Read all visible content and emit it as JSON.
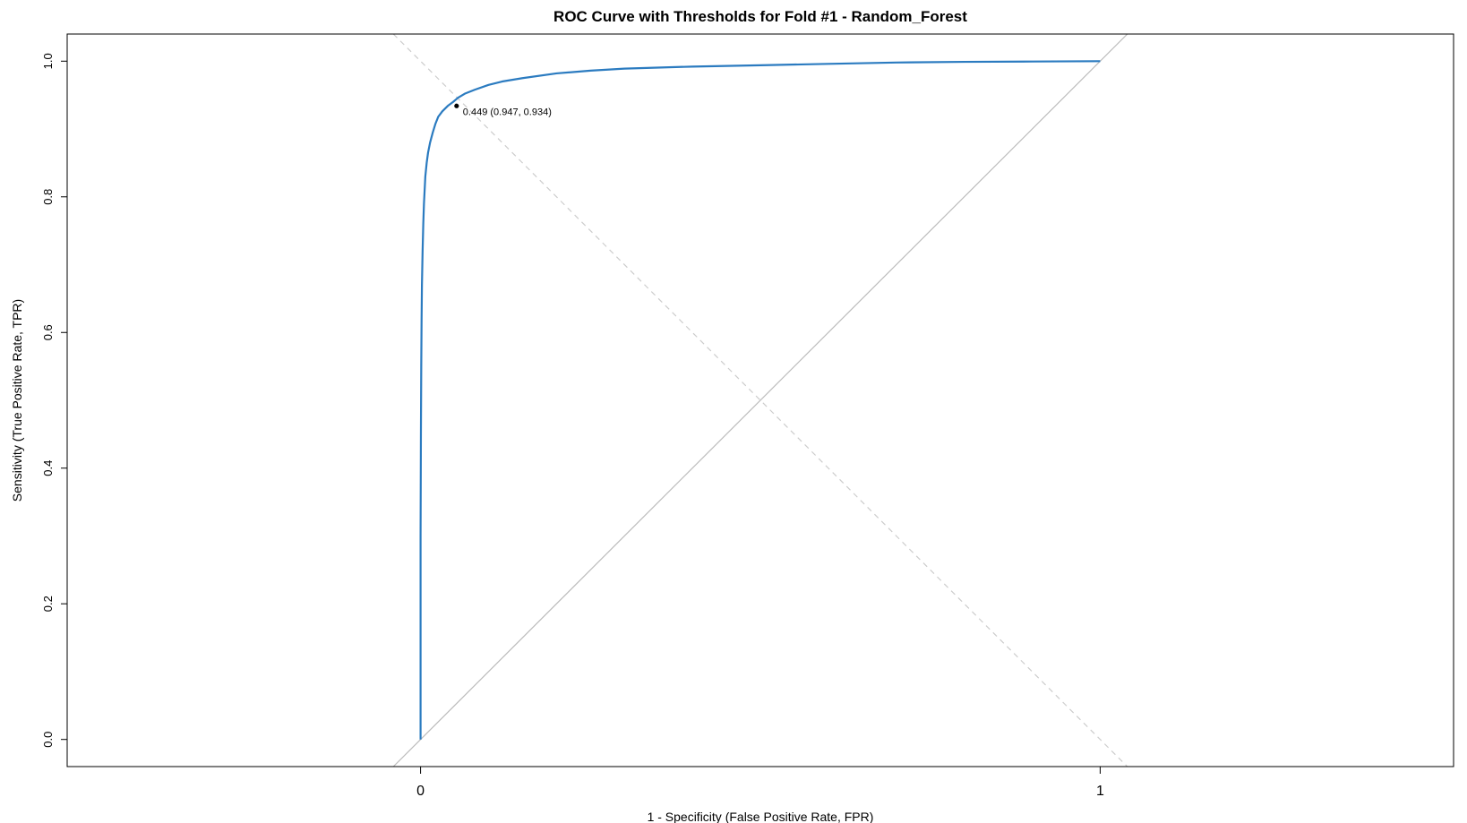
{
  "chart_data": {
    "type": "line",
    "title": "ROC Curve with Thresholds for Fold #1 - Random_Forest",
    "xlabel": "1 - Specificity (False Positive Rate, FPR)",
    "ylabel": "Sensitivity (True Positive Rate, TPR)",
    "x_ticks": [
      {
        "value": 0,
        "label": "0"
      },
      {
        "value": 1,
        "label": "1"
      }
    ],
    "y_ticks": [
      {
        "value": 0.0,
        "label": "0.0"
      },
      {
        "value": 0.2,
        "label": "0.2"
      },
      {
        "value": 0.4,
        "label": "0.4"
      },
      {
        "value": 0.6,
        "label": "0.6"
      },
      {
        "value": 0.8,
        "label": "0.8"
      },
      {
        "value": 1.0,
        "label": "1.0"
      }
    ],
    "xlim": [
      -0.52,
      1.52
    ],
    "ylim": [
      -0.04,
      1.04
    ],
    "grid": false,
    "colors": {
      "roc": "#2b7bc0",
      "diagonal": "#bbbbbb",
      "threshold_guide": "#cccccc",
      "point": "#000000"
    },
    "series": [
      {
        "x": [
          0,
          0,
          0.0005,
          0.001,
          0.0015,
          0.002,
          0.003,
          0.004,
          0.005,
          0.007,
          0.009,
          0.011,
          0.014,
          0.018,
          0.022,
          0.026,
          0.032,
          0.04,
          0.048,
          0.055,
          0.065,
          0.08,
          0.1,
          0.12,
          0.15,
          0.2,
          0.25,
          0.3,
          0.4,
          0.5,
          0.6,
          0.7,
          0.8,
          0.9,
          1.0
        ],
        "y": [
          0,
          0.3,
          0.45,
          0.55,
          0.62,
          0.67,
          0.72,
          0.76,
          0.79,
          0.83,
          0.85,
          0.865,
          0.88,
          0.895,
          0.908,
          0.918,
          0.926,
          0.934,
          0.94,
          0.946,
          0.952,
          0.958,
          0.965,
          0.97,
          0.975,
          0.982,
          0.986,
          0.989,
          0.992,
          0.994,
          0.996,
          0.998,
          0.999,
          0.9995,
          1.0
        ]
      }
    ],
    "reference_lines": [
      {
        "style": "solid",
        "x": [
          -0.04,
          1.04
        ],
        "y": [
          -0.04,
          1.04
        ]
      },
      {
        "style": "dashed",
        "x": [
          -0.04,
          1.04
        ],
        "y": [
          1.04,
          -0.04
        ]
      }
    ],
    "annotations": [
      {
        "x": 0.053,
        "y": 0.934,
        "text": "0.449 (0.947, 0.934)"
      }
    ]
  }
}
